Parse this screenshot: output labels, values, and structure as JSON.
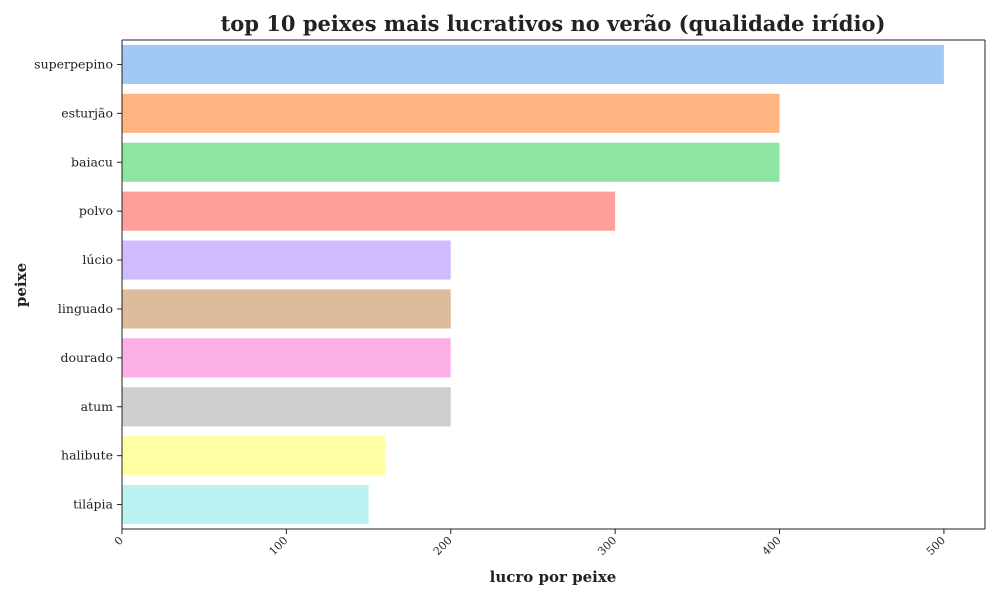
{
  "chart_data": {
    "type": "bar",
    "orientation": "horizontal",
    "title": "top 10 peixes mais lucrativos no verão (qualidade irídio)",
    "xlabel": "lucro por peixe",
    "ylabel": "peixe",
    "xlim": [
      0,
      525
    ],
    "x_ticks": [
      0,
      100,
      200,
      300,
      400,
      500
    ],
    "grid": false,
    "categories": [
      "superpepino",
      "esturjão",
      "baiacu",
      "polvo",
      "lúcio",
      "linguado",
      "dourado",
      "atum",
      "halibute",
      "tilápia"
    ],
    "values": [
      500,
      400,
      400,
      300,
      200,
      200,
      200,
      200,
      160,
      150
    ],
    "colors": [
      "#a1c9f4",
      "#ffb482",
      "#8de5a1",
      "#ff9f9b",
      "#d0bbff",
      "#debb9b",
      "#fab0e4",
      "#cfcfcf",
      "#fffea3",
      "#b9f2f0"
    ]
  }
}
